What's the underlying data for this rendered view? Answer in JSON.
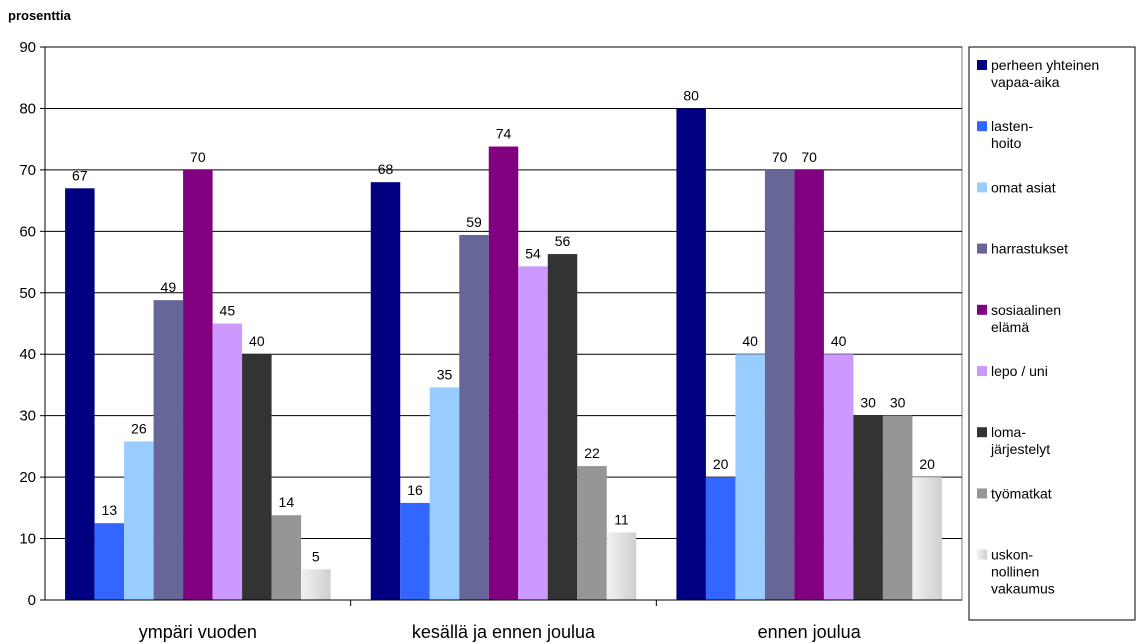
{
  "chart_data": {
    "type": "bar",
    "ylabel": "prosenttia",
    "ylim": [
      0,
      90
    ],
    "yticks": [
      0,
      10,
      20,
      30,
      40,
      50,
      60,
      70,
      80,
      90
    ],
    "grid": true,
    "legend_position": "right",
    "categories": [
      "ympäri vuoden",
      "kesällä ja ennen joulua",
      "ennen joulua"
    ],
    "series": [
      {
        "name": "perheen yhteinen vapaa-aika",
        "legend_lines": [
          "perheen yhteinen",
          "vapaa-aika"
        ],
        "color": "#000080",
        "values": [
          67,
          68,
          80
        ],
        "labels": [
          "67",
          "68",
          "80"
        ]
      },
      {
        "name": "lasten-hoito",
        "legend_lines": [
          "lasten-",
          "hoito"
        ],
        "color": "#3366FF",
        "values": [
          12.5,
          15.8,
          20
        ],
        "labels": [
          "13",
          "16",
          "20"
        ]
      },
      {
        "name": "omat asiat",
        "legend_lines": [
          "omat asiat"
        ],
        "color": "#99CCFF",
        "values": [
          25.8,
          34.6,
          40
        ],
        "labels": [
          "26",
          "35",
          "40"
        ]
      },
      {
        "name": "harrastukset",
        "legend_lines": [
          "harrastukset"
        ],
        "color": "#666699",
        "values": [
          48.8,
          59.4,
          70
        ],
        "labels": [
          "49",
          "59",
          "70"
        ]
      },
      {
        "name": "sosiaalinen elämä",
        "legend_lines": [
          "sosiaalinen",
          "elämä"
        ],
        "color": "#800080",
        "values": [
          70,
          73.8,
          70
        ],
        "labels": [
          "70",
          "74",
          "70"
        ]
      },
      {
        "name": "lepo / uni",
        "legend_lines": [
          "lepo / uni"
        ],
        "color": "#CC99FF",
        "values": [
          45,
          54.3,
          40
        ],
        "labels": [
          "45",
          "54",
          "40"
        ]
      },
      {
        "name": "loma-järjestelyt",
        "legend_lines": [
          "loma-",
          "järjestelyt"
        ],
        "color": "#333333",
        "values": [
          40,
          56.3,
          30
        ],
        "labels": [
          "40",
          "56",
          "30"
        ]
      },
      {
        "name": "työmatkat",
        "legend_lines": [
          "työmatkat"
        ],
        "color": "#969696",
        "values": [
          13.8,
          21.8,
          30
        ],
        "labels": [
          "14",
          "22",
          "30"
        ]
      },
      {
        "name": "uskon-nollinen vakaumus",
        "legend_lines": [
          "uskon-",
          "nollinen",
          "vakaumus"
        ],
        "color": "#DDDDDD",
        "values": [
          5,
          11,
          20
        ],
        "labels": [
          "5",
          "11",
          "20"
        ]
      }
    ]
  }
}
